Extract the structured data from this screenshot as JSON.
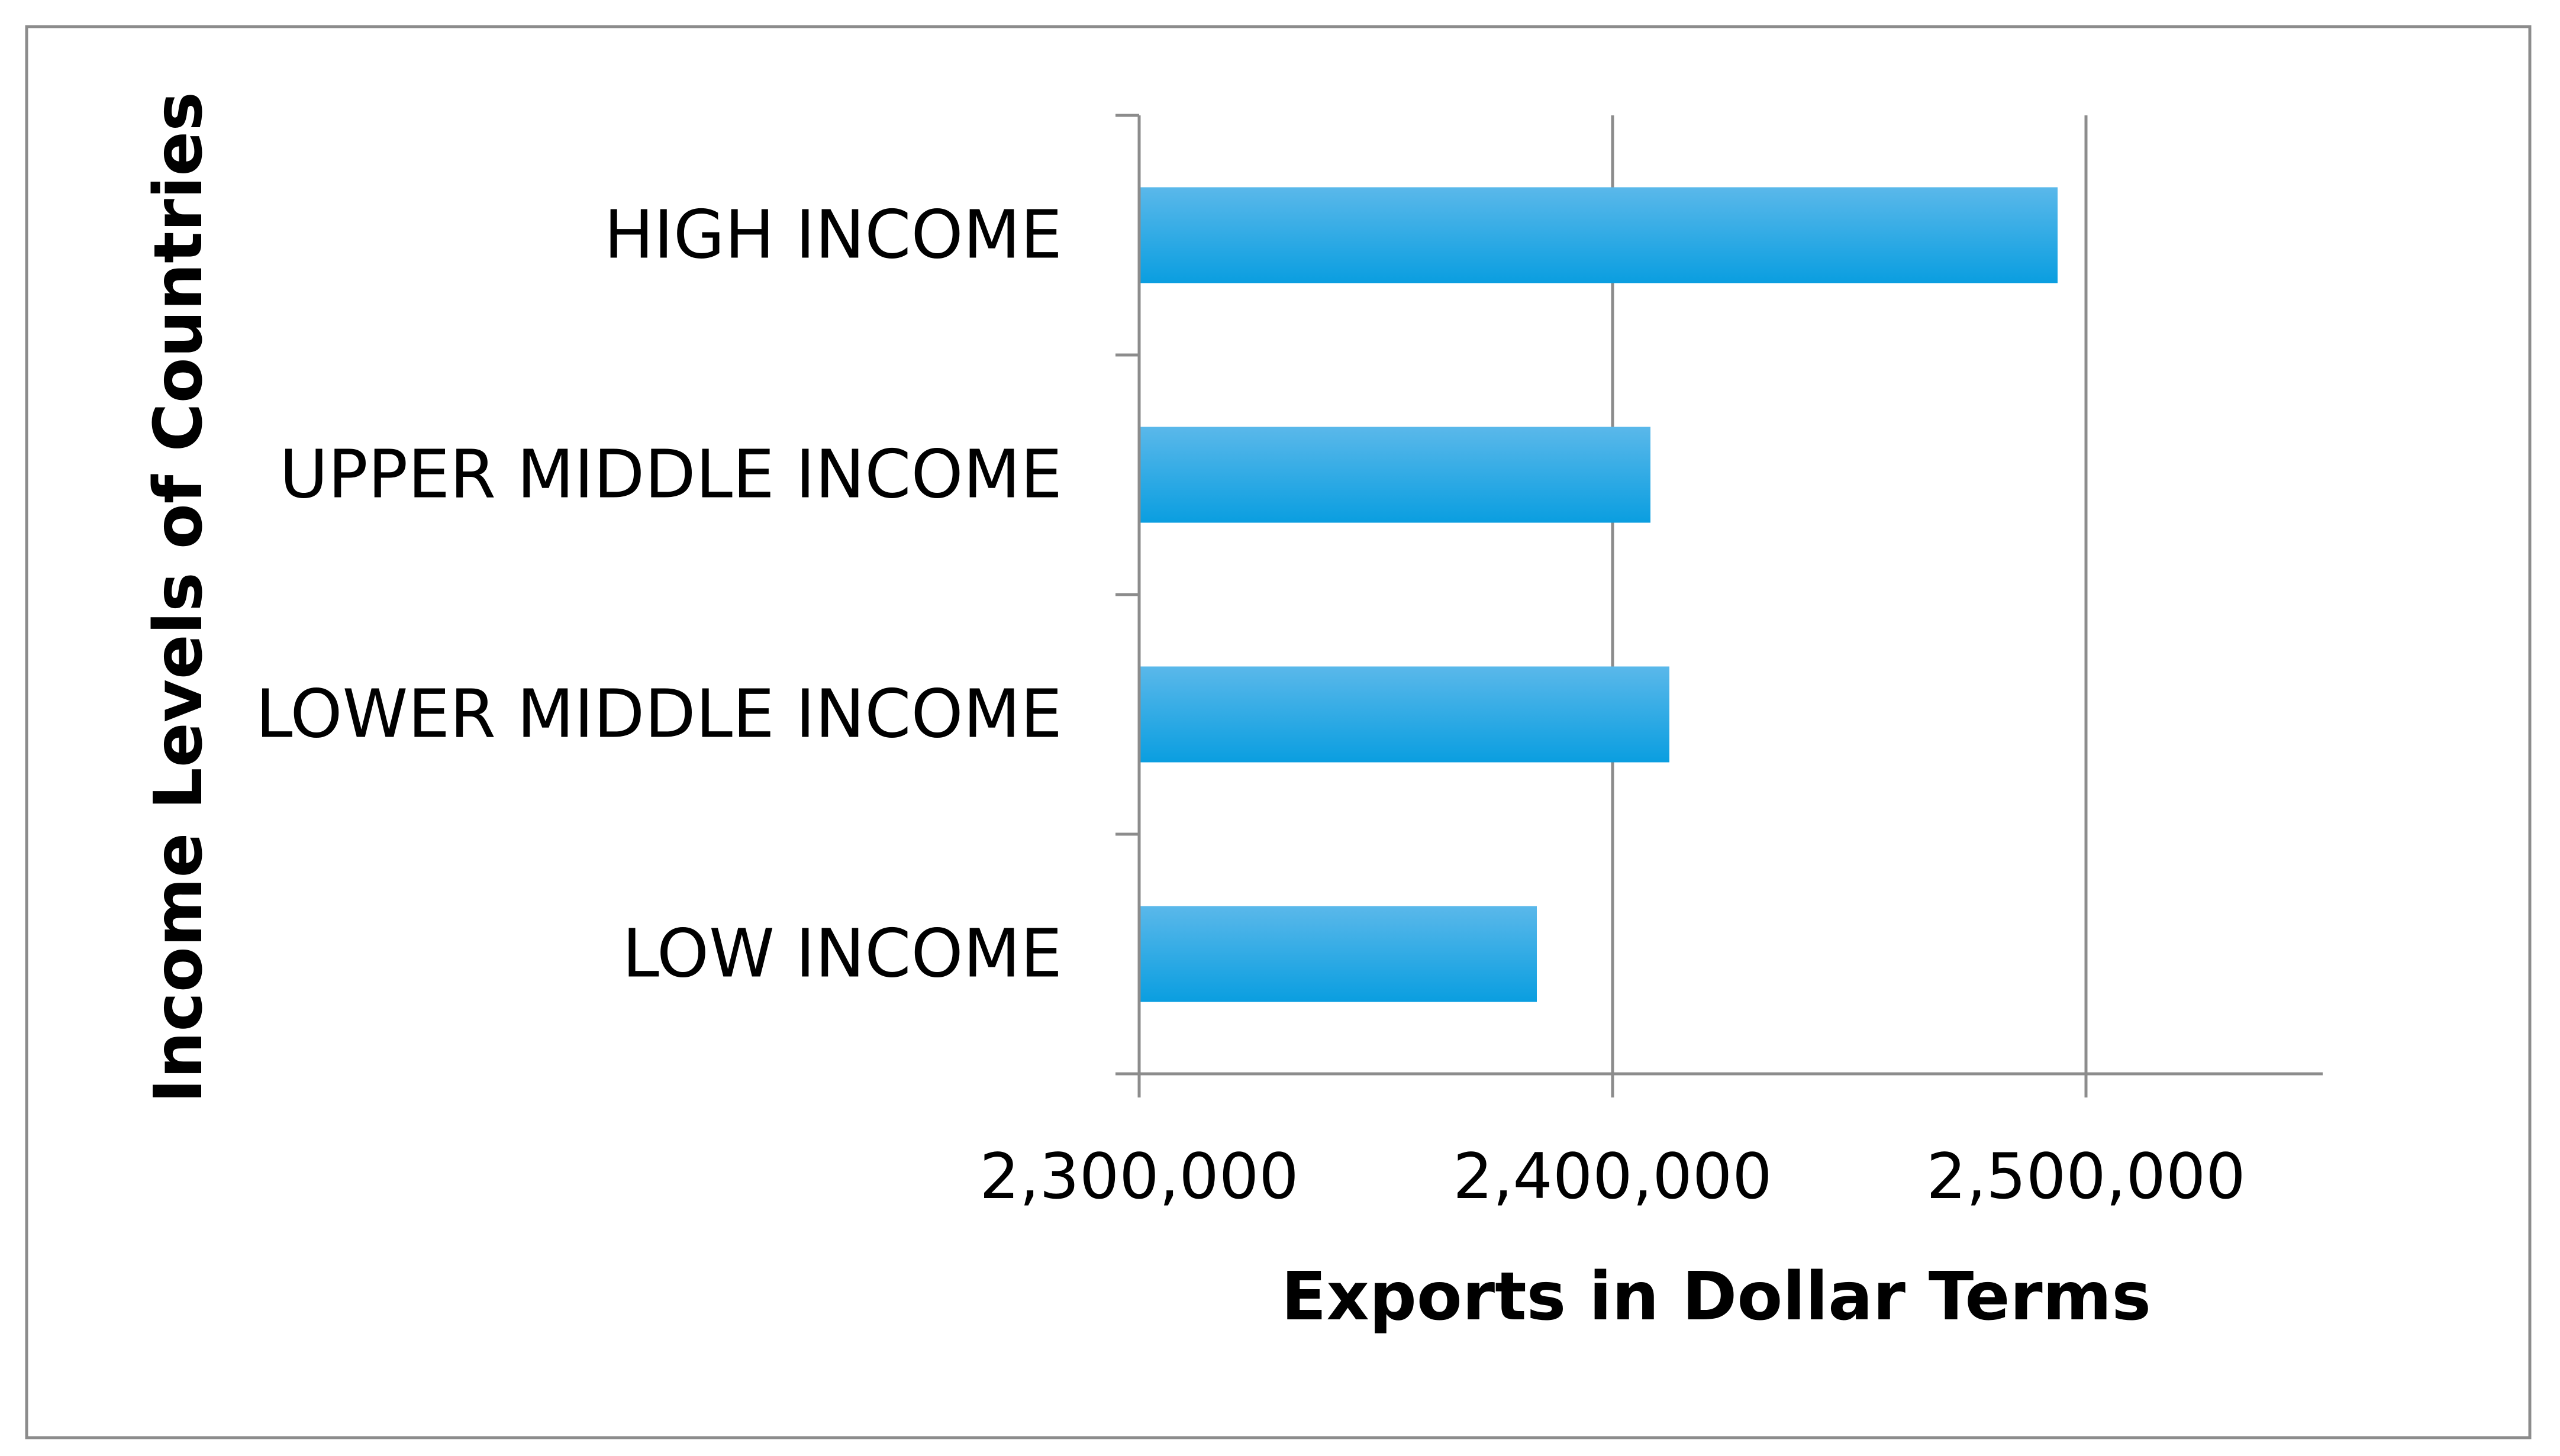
{
  "chart_data": {
    "type": "bar",
    "orientation": "horizontal",
    "categories": [
      "HIGH INCOME",
      "UPPER MIDDLE INCOME",
      "LOWER MIDDLE INCOME",
      "LOW INCOME"
    ],
    "values": [
      2494000,
      2408000,
      2412000,
      2384000
    ],
    "xlabel": "Exports in Dollar Terms",
    "ylabel": "Income Levels of Countries",
    "xlim": [
      2300000,
      2550000
    ],
    "xticks": [
      2300000,
      2400000,
      2500000
    ],
    "xtick_labels": [
      "2,300,000",
      "2,400,000",
      "2,500,000"
    ],
    "grid": true,
    "bar_color": "#0a9ee0",
    "bar_color_light": "#5ab8ea",
    "legend": "none"
  }
}
